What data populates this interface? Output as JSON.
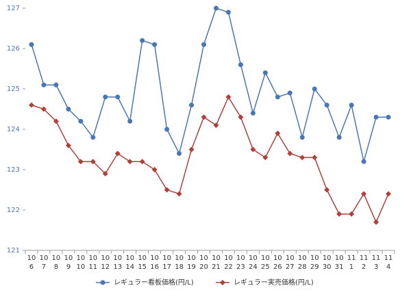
{
  "chart_data": {
    "type": "line",
    "categories": [
      [
        "10",
        "6"
      ],
      [
        "10",
        "7"
      ],
      [
        "10",
        "8"
      ],
      [
        "10",
        "9"
      ],
      [
        "10",
        "10"
      ],
      [
        "10",
        "11"
      ],
      [
        "10",
        "12"
      ],
      [
        "10",
        "13"
      ],
      [
        "10",
        "14"
      ],
      [
        "10",
        "15"
      ],
      [
        "10",
        "16"
      ],
      [
        "10",
        "17"
      ],
      [
        "10",
        "18"
      ],
      [
        "10",
        "19"
      ],
      [
        "10",
        "20"
      ],
      [
        "10",
        "21"
      ],
      [
        "10",
        "22"
      ],
      [
        "10",
        "23"
      ],
      [
        "10",
        "24"
      ],
      [
        "10",
        "25"
      ],
      [
        "10",
        "26"
      ],
      [
        "10",
        "27"
      ],
      [
        "10",
        "28"
      ],
      [
        "10",
        "29"
      ],
      [
        "10",
        "30"
      ],
      [
        "10",
        "31"
      ],
      [
        "11",
        "1"
      ],
      [
        "11",
        "2"
      ],
      [
        "11",
        "3"
      ],
      [
        "11",
        "4"
      ]
    ],
    "series": [
      {
        "name": "レギュラー看板価格(円/L)",
        "color": "#4a76b5",
        "marker": "circle",
        "values": [
          126.1,
          125.1,
          125.1,
          124.5,
          124.2,
          123.8,
          124.8,
          124.8,
          124.2,
          126.2,
          126.1,
          124.0,
          123.4,
          124.6,
          126.1,
          127.0,
          126.9,
          125.6,
          124.4,
          125.4,
          124.8,
          124.9,
          123.8,
          125.0,
          124.6,
          123.8,
          124.6,
          123.2,
          124.3,
          124.3
        ]
      },
      {
        "name": "レギュラー実売価格(円/L)",
        "color": "#b0403c",
        "marker": "diamond",
        "values": [
          124.6,
          124.5,
          124.2,
          123.6,
          123.2,
          123.2,
          122.9,
          123.4,
          123.2,
          123.2,
          123.0,
          122.5,
          122.4,
          123.5,
          124.3,
          124.1,
          124.8,
          124.3,
          123.5,
          123.3,
          123.9,
          123.4,
          123.3,
          123.3,
          122.5,
          121.9,
          121.9,
          122.4,
          121.7,
          122.4
        ]
      }
    ],
    "ylim": [
      121,
      127
    ],
    "yticks": [
      121,
      122,
      123,
      124,
      125,
      126,
      127
    ],
    "legend": "bottom"
  }
}
